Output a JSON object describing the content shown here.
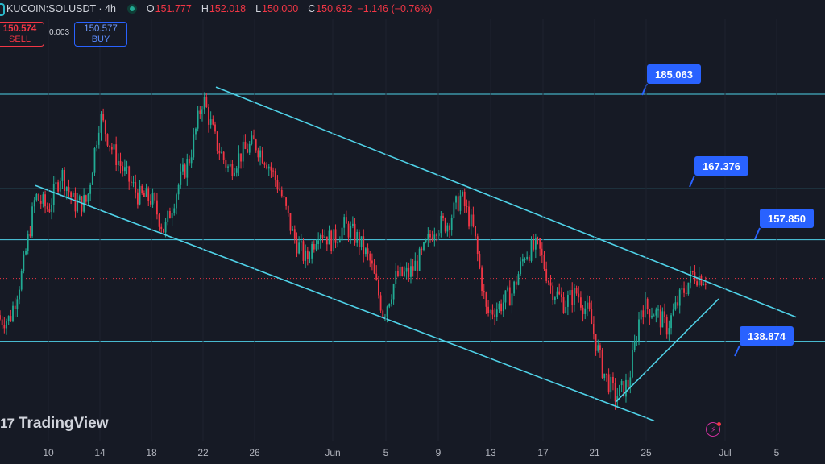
{
  "header": {
    "symbol": "KUCOIN:SOLUSDT · 4h",
    "open_label": "O",
    "open": "151.777",
    "high_label": "H",
    "high": "152.018",
    "low_label": "L",
    "low": "150.000",
    "close_label": "C",
    "close": "150.632",
    "change": "−1.146 (−0.76%)"
  },
  "trade": {
    "sell_price": "150.574",
    "sell_label": "SELL",
    "spread": "0.003",
    "buy_price": "150.577",
    "buy_label": "BUY"
  },
  "levels": [
    {
      "value": "185.063"
    },
    {
      "value": "167.376"
    },
    {
      "value": "157.850"
    },
    {
      "value": "138.874"
    }
  ],
  "watermark": "TradingView",
  "colors": {
    "background": "#161a25",
    "up": "#22ab94",
    "down": "#f23645",
    "lines": "#4fd2e8",
    "label": "#2962ff"
  },
  "chart_data": {
    "type": "candlestick",
    "symbol": "SOLUSDT",
    "interval": "4h",
    "x_tick_labels": [
      "10",
      "14",
      "18",
      "22",
      "26",
      "Jun",
      "5",
      "9",
      "13",
      "17",
      "21",
      "25",
      "Jul",
      "5"
    ],
    "horizontal_levels": [
      185.063,
      167.376,
      157.85,
      138.874
    ],
    "current_price": 150.632,
    "price_path": [
      {
        "date": "May 7",
        "price": 143.0
      },
      {
        "date": "May 8",
        "price": 152.0
      },
      {
        "date": "May 9",
        "price": 166.0
      },
      {
        "date": "May 10",
        "price": 163.5
      },
      {
        "date": "May 11",
        "price": 170.5
      },
      {
        "date": "May 12",
        "price": 164.5
      },
      {
        "date": "May 13",
        "price": 165.0
      },
      {
        "date": "May 14",
        "price": 181.0
      },
      {
        "date": "May 15",
        "price": 174.5
      },
      {
        "date": "May 16",
        "price": 170.0
      },
      {
        "date": "May 17",
        "price": 166.0
      },
      {
        "date": "May 18",
        "price": 165.5
      },
      {
        "date": "May 19",
        "price": 159.5
      },
      {
        "date": "May 20",
        "price": 167.5
      },
      {
        "date": "May 21",
        "price": 173.5
      },
      {
        "date": "May 22",
        "price": 184.5
      },
      {
        "date": "May 23",
        "price": 176.0
      },
      {
        "date": "May 24",
        "price": 171.0
      },
      {
        "date": "May 25",
        "price": 174.0
      },
      {
        "date": "May 26",
        "price": 176.0
      },
      {
        "date": "May 27",
        "price": 172.5
      },
      {
        "date": "May 28",
        "price": 167.0
      },
      {
        "date": "May 29",
        "price": 158.5
      },
      {
        "date": "May 30",
        "price": 154.0
      },
      {
        "date": "May 31",
        "price": 160.0
      },
      {
        "date": "Jun 1",
        "price": 157.5
      },
      {
        "date": "Jun 2",
        "price": 160.5
      },
      {
        "date": "Jun 3",
        "price": 158.0
      },
      {
        "date": "Jun 4",
        "price": 153.5
      },
      {
        "date": "Jun 5",
        "price": 144.0
      },
      {
        "date": "Jun 6",
        "price": 151.0
      },
      {
        "date": "Jun 7",
        "price": 151.5
      },
      {
        "date": "Jun 8",
        "price": 155.0
      },
      {
        "date": "Jun 9",
        "price": 160.5
      },
      {
        "date": "Jun 10",
        "price": 161.0
      },
      {
        "date": "Jun 11",
        "price": 166.0
      },
      {
        "date": "Jun 12",
        "price": 159.5
      },
      {
        "date": "Jun 13",
        "price": 144.0
      },
      {
        "date": "Jun 14",
        "price": 145.5
      },
      {
        "date": "Jun 15",
        "price": 148.0
      },
      {
        "date": "Jun 16",
        "price": 155.5
      },
      {
        "date": "Jun 17",
        "price": 156.5
      },
      {
        "date": "Jun 18",
        "price": 149.0
      },
      {
        "date": "Jun 19",
        "price": 146.0
      },
      {
        "date": "Jun 20",
        "price": 148.0
      },
      {
        "date": "Jun 21",
        "price": 143.5
      },
      {
        "date": "Jun 22",
        "price": 133.5
      },
      {
        "date": "Jun 23",
        "price": 128.5
      },
      {
        "date": "Jun 24",
        "price": 131.0
      },
      {
        "date": "Jun 25",
        "price": 145.5
      },
      {
        "date": "Jun 26",
        "price": 144.5
      },
      {
        "date": "Jun 27",
        "price": 141.5
      },
      {
        "date": "Jun 28",
        "price": 147.0
      },
      {
        "date": "Jun 29",
        "price": 151.5
      },
      {
        "date": "Jun 30",
        "price": 150.632
      }
    ],
    "trendlines": [
      {
        "role": "channel-top",
        "from": {
          "date": "May 23",
          "price": 186.4
        },
        "to": {
          "date": "Jul 7",
          "price": 143.4
        }
      },
      {
        "role": "channel-bottom",
        "from": {
          "date": "May 9",
          "price": 168.0
        },
        "to": {
          "date": "Jun 26",
          "price": 124.0
        }
      },
      {
        "role": "rising-support",
        "from": {
          "date": "Jun 23",
          "price": 127.5
        },
        "to": {
          "date": "Jul 1",
          "price": 146.8
        }
      }
    ]
  }
}
